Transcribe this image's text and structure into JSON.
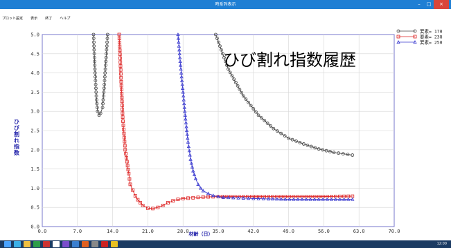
{
  "window": {
    "title": "時系列表示",
    "minimize_label": "–",
    "maximize_label": "□",
    "close_label": "×"
  },
  "menu": [
    "プロット設定",
    "表示",
    "終了",
    "ヘルプ"
  ],
  "colors": {
    "titlebar": "#1f7fd4",
    "taskbar": "#1b3b63",
    "series_black": "#444444",
    "series_red": "#dd2222",
    "series_blue": "#3a3acf"
  },
  "chart_data": {
    "type": "line",
    "title": "ひび割れ指数履歴",
    "xlabel": "材齢（日）",
    "ylabel": "ひび割れ指数",
    "xlim": [
      0,
      70
    ],
    "ylim": [
      0,
      5
    ],
    "x_ticks": [
      "0.0",
      "7.0",
      "14.0",
      "21.0",
      "28.0",
      "35.0",
      "42.0",
      "49.0",
      "56.0",
      "63.0",
      "70.0"
    ],
    "y_ticks": [
      "0.0",
      "0.5",
      "1.0",
      "1.5",
      "2.0",
      "2.5",
      "3.0",
      "3.5",
      "4.0",
      "4.5",
      "5.0"
    ],
    "grid": true,
    "legend_position": "top-right",
    "series": [
      {
        "name": "要素= 178",
        "marker": "circle",
        "color": "#444444",
        "x": [
          10.2,
          10.5,
          10.8,
          11.0,
          11.3,
          11.6,
          12.0,
          12.3,
          12.7,
          13.0
        ],
        "y": [
          5.0,
          4.0,
          3.3,
          3.0,
          2.9,
          2.95,
          3.1,
          3.6,
          4.4,
          5.0
        ],
        "tail": {
          "x": [
            34.5,
            37,
            40,
            43,
            46,
            49,
            52,
            55,
            58,
            61.7
          ],
          "y": [
            5.0,
            4.1,
            3.4,
            2.9,
            2.55,
            2.3,
            2.15,
            2.02,
            1.93,
            1.86
          ]
        }
      },
      {
        "name": "要素= 238",
        "marker": "square",
        "color": "#dd2222",
        "x": [
          15.3,
          16.0,
          16.5,
          17.2,
          17.5,
          18.0,
          18.5,
          19.0,
          19.5,
          20.0,
          21.0,
          22.0,
          23.0,
          24.0,
          25.0,
          26.0,
          27.0,
          28.0,
          30.0,
          32.0,
          35.0,
          40.0,
          45.0,
          50.0,
          55.0,
          61.7
        ],
        "y": [
          5.0,
          2.85,
          2.0,
          1.38,
          1.1,
          0.95,
          0.8,
          0.7,
          0.62,
          0.55,
          0.48,
          0.47,
          0.5,
          0.55,
          0.62,
          0.67,
          0.71,
          0.73,
          0.75,
          0.77,
          0.78,
          0.78,
          0.78,
          0.78,
          0.78,
          0.79
        ]
      },
      {
        "name": "要素= 258",
        "marker": "triangle",
        "color": "#3a3acf",
        "x": [
          27.0,
          27.5,
          28.0,
          28.5,
          29.0,
          29.5,
          30.0,
          30.5,
          31.0,
          31.5,
          32.0,
          33.0,
          34.0,
          35.0,
          36.0,
          38.0,
          40.0,
          42.0,
          45.0,
          50.0,
          55.0,
          61.7
        ],
        "y": [
          5.0,
          4.2,
          3.5,
          2.8,
          2.2,
          1.75,
          1.45,
          1.25,
          1.1,
          1.0,
          0.93,
          0.86,
          0.81,
          0.78,
          0.76,
          0.75,
          0.74,
          0.73,
          0.72,
          0.71,
          0.71,
          0.71
        ]
      }
    ]
  },
  "taskbar": {
    "clock": "12:00"
  }
}
